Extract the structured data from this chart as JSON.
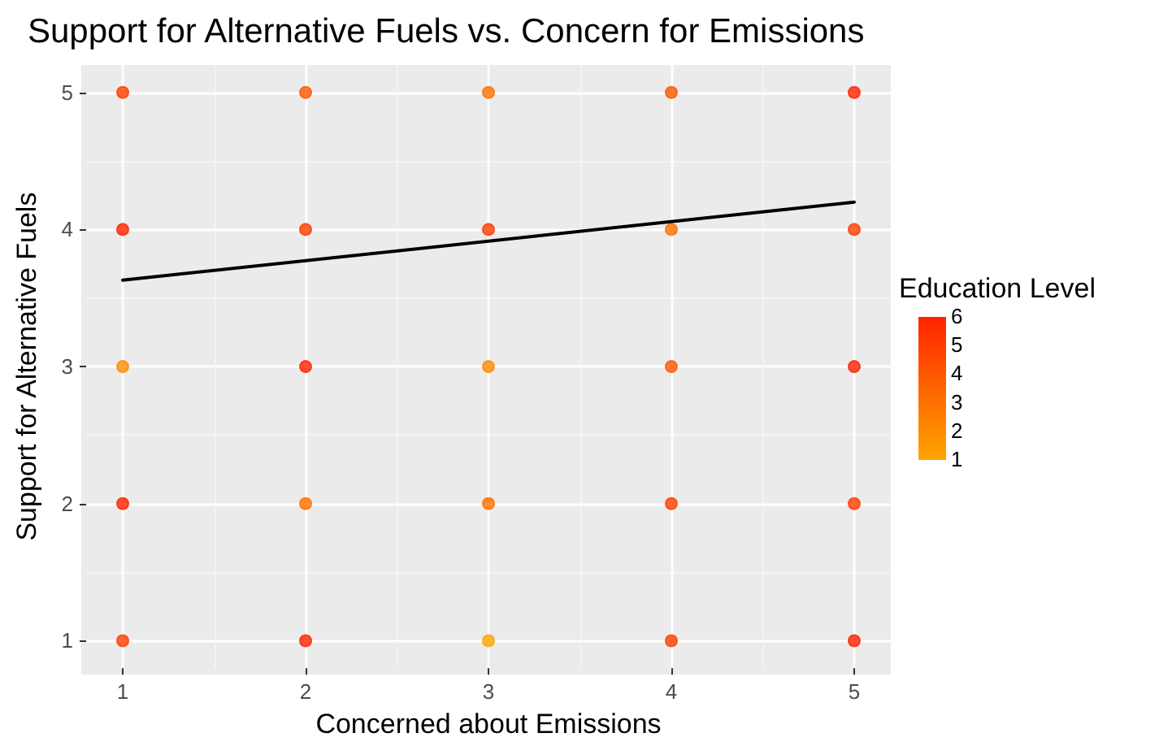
{
  "chart_data": {
    "type": "scatter",
    "title": "Support for Alternative Fuels vs. Concern for Emissions",
    "xlabel": "Concerned about Emissions",
    "ylabel": "Support for Alternative Fuels",
    "clabel": "Education Level",
    "xlim": [
      0.8,
      5.2
    ],
    "ylim": [
      0.8,
      5.2
    ],
    "xticks": [
      1,
      2,
      3,
      4,
      5
    ],
    "yticks": [
      1,
      2,
      3,
      4,
      5
    ],
    "grid": true,
    "clim": [
      1,
      6
    ],
    "cticks": [
      1,
      2,
      3,
      4,
      5,
      6
    ],
    "series": [
      {
        "marker": "circle",
        "colors": [
          "#ff3e00",
          "#ff5800",
          "#ff7100",
          "#ff5800",
          "#ff2400",
          "#ff2400",
          "#ff3e00",
          "#ff3e00",
          "#ff7100",
          "#ff3e00",
          "#ff8b00",
          "#ff2400",
          "#ff8b00",
          "#ff5800",
          "#ff2400",
          "#ff2400",
          "#ff7100",
          "#ff7100",
          "#ff3e00",
          "#ff3e00",
          "#ff3e00",
          "#ff2400",
          "#ffa500",
          "#ff3e00",
          "#ff2400"
        ],
        "x": [
          1,
          2,
          3,
          4,
          5,
          1,
          2,
          3,
          4,
          5,
          1,
          2,
          3,
          4,
          5,
          1,
          2,
          3,
          4,
          5,
          1,
          2,
          3,
          4,
          5
        ],
        "values": [
          5,
          5,
          5,
          5,
          5,
          4,
          4,
          4,
          4,
          4,
          3,
          3,
          3,
          3,
          3,
          2,
          2,
          2,
          2,
          2,
          1,
          1,
          1,
          1,
          1
        ],
        "cvalues": [
          5,
          4,
          3,
          4,
          6,
          6,
          5,
          5,
          3,
          5,
          2,
          6,
          2,
          4,
          6,
          6,
          3,
          3,
          5,
          5,
          5,
          6,
          1,
          5,
          6
        ]
      },
      {
        "type": "line",
        "marker": "none",
        "line_style": "solid",
        "color": "#000000",
        "x": [
          1,
          5
        ],
        "values": [
          3.63,
          4.2
        ]
      }
    ]
  }
}
